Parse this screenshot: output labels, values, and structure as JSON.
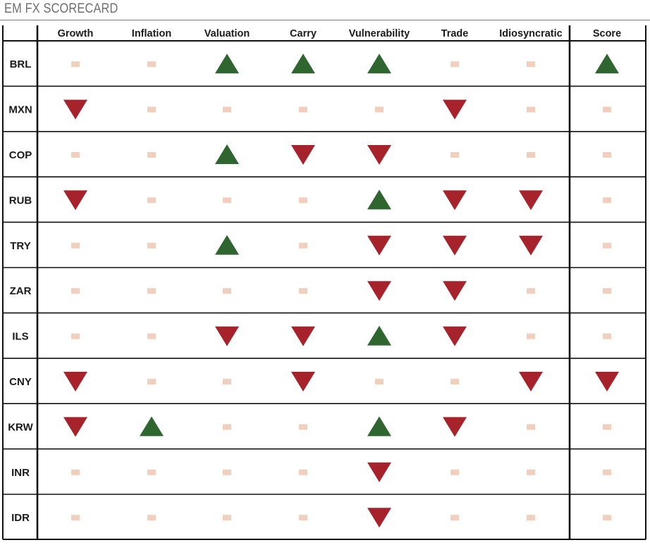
{
  "title": "EM FX SCORECARD",
  "chart_data": {
    "type": "table",
    "columns": [
      "Growth",
      "Inflation",
      "Valuation",
      "Carry",
      "Vulnerability",
      "Trade",
      "Idiosyncratic",
      "Score"
    ],
    "rows": [
      {
        "label": "BRL",
        "signals": [
          "neutral",
          "neutral",
          "up",
          "up",
          "up",
          "neutral",
          "neutral",
          "up"
        ]
      },
      {
        "label": "MXN",
        "signals": [
          "down",
          "neutral",
          "neutral",
          "neutral",
          "neutral",
          "down",
          "neutral",
          "neutral"
        ]
      },
      {
        "label": "COP",
        "signals": [
          "neutral",
          "neutral",
          "up",
          "down",
          "down",
          "neutral",
          "neutral",
          "neutral"
        ]
      },
      {
        "label": "RUB",
        "signals": [
          "down",
          "neutral",
          "neutral",
          "neutral",
          "up",
          "down",
          "down",
          "neutral"
        ]
      },
      {
        "label": "TRY",
        "signals": [
          "neutral",
          "neutral",
          "up",
          "neutral",
          "down",
          "down",
          "down",
          "neutral"
        ]
      },
      {
        "label": "ZAR",
        "signals": [
          "neutral",
          "neutral",
          "neutral",
          "neutral",
          "down",
          "down",
          "neutral",
          "neutral"
        ]
      },
      {
        "label": "ILS",
        "signals": [
          "neutral",
          "neutral",
          "down",
          "down",
          "up",
          "down",
          "neutral",
          "neutral"
        ]
      },
      {
        "label": "CNY",
        "signals": [
          "down",
          "neutral",
          "neutral",
          "down",
          "neutral",
          "neutral",
          "down",
          "down"
        ]
      },
      {
        "label": "KRW",
        "signals": [
          "down",
          "up",
          "neutral",
          "neutral",
          "up",
          "down",
          "neutral",
          "neutral"
        ]
      },
      {
        "label": "INR",
        "signals": [
          "neutral",
          "neutral",
          "neutral",
          "neutral",
          "down",
          "neutral",
          "neutral",
          "neutral"
        ]
      },
      {
        "label": "IDR",
        "signals": [
          "neutral",
          "neutral",
          "neutral",
          "neutral",
          "down",
          "neutral",
          "neutral",
          "neutral"
        ]
      }
    ]
  },
  "colors": {
    "up": "#2f6630",
    "down": "#a6232b",
    "neutral": "#f2cfbd",
    "grid": "#111111",
    "text": "#1a1a1a",
    "title": "#6e6e6e"
  }
}
